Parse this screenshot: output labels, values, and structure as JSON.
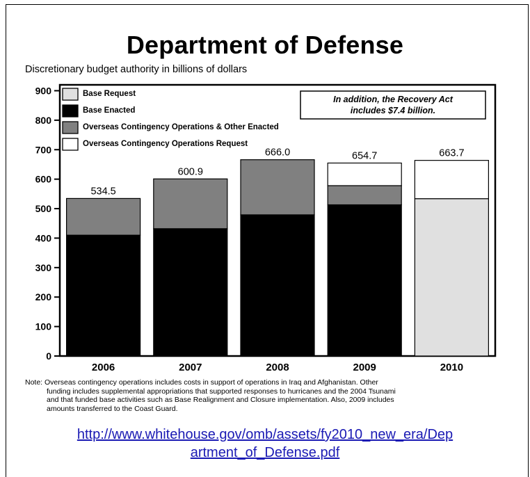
{
  "header": {
    "title": "Department of Defense",
    "subtitle": "Discretionary budget authority in billions of dollars"
  },
  "chart_data": {
    "type": "bar",
    "stacked": true,
    "categories": [
      "2006",
      "2007",
      "2008",
      "2009",
      "2010"
    ],
    "series": [
      {
        "name": "Base Request",
        "color": "#e0e0e0",
        "values": [
          0,
          0,
          0,
          0,
          533.8
        ]
      },
      {
        "name": "Base Enacted",
        "color": "#000000",
        "values": [
          410.0,
          432.0,
          479.0,
          513.0,
          0
        ]
      },
      {
        "name": "Overseas Contingency Operations & Other Enacted",
        "color": "#808080",
        "values": [
          124.5,
          168.9,
          187.0,
          65.0,
          0
        ]
      },
      {
        "name": "Overseas Contingency Operations Request",
        "color": "#ffffff",
        "values": [
          0,
          0,
          0,
          76.7,
          129.9
        ]
      }
    ],
    "totals": [
      "534.5",
      "600.9",
      "666.0",
      "654.7",
      "663.7"
    ],
    "y_ticks": [
      "0",
      "100",
      "200",
      "300",
      "400",
      "500",
      "600",
      "700",
      "800",
      "900"
    ],
    "ylim": [
      0,
      920
    ],
    "legend_position": "top-left",
    "grid": false,
    "annotation": {
      "line1": "In addition, the Recovery Act",
      "line2": "includes $7.4 billion."
    }
  },
  "note": {
    "line1": "Note:  Overseas contingency operations includes costs in support of operations in Iraq and Afghanistan.  Other",
    "line2": "funding includes supplemental appropriations that supported responses to hurricanes and the 2004 Tsunami",
    "line3": "and that funded base activities such as Base Realignment and Closure implementation.  Also, 2009 includes",
    "line4": "amounts transferred to the Coast Guard."
  },
  "source_link": {
    "line1": "http://www.whitehouse.gov/omb/assets/fy2010_new_era/Dep",
    "line2": "artment_of_Defense.pdf"
  }
}
